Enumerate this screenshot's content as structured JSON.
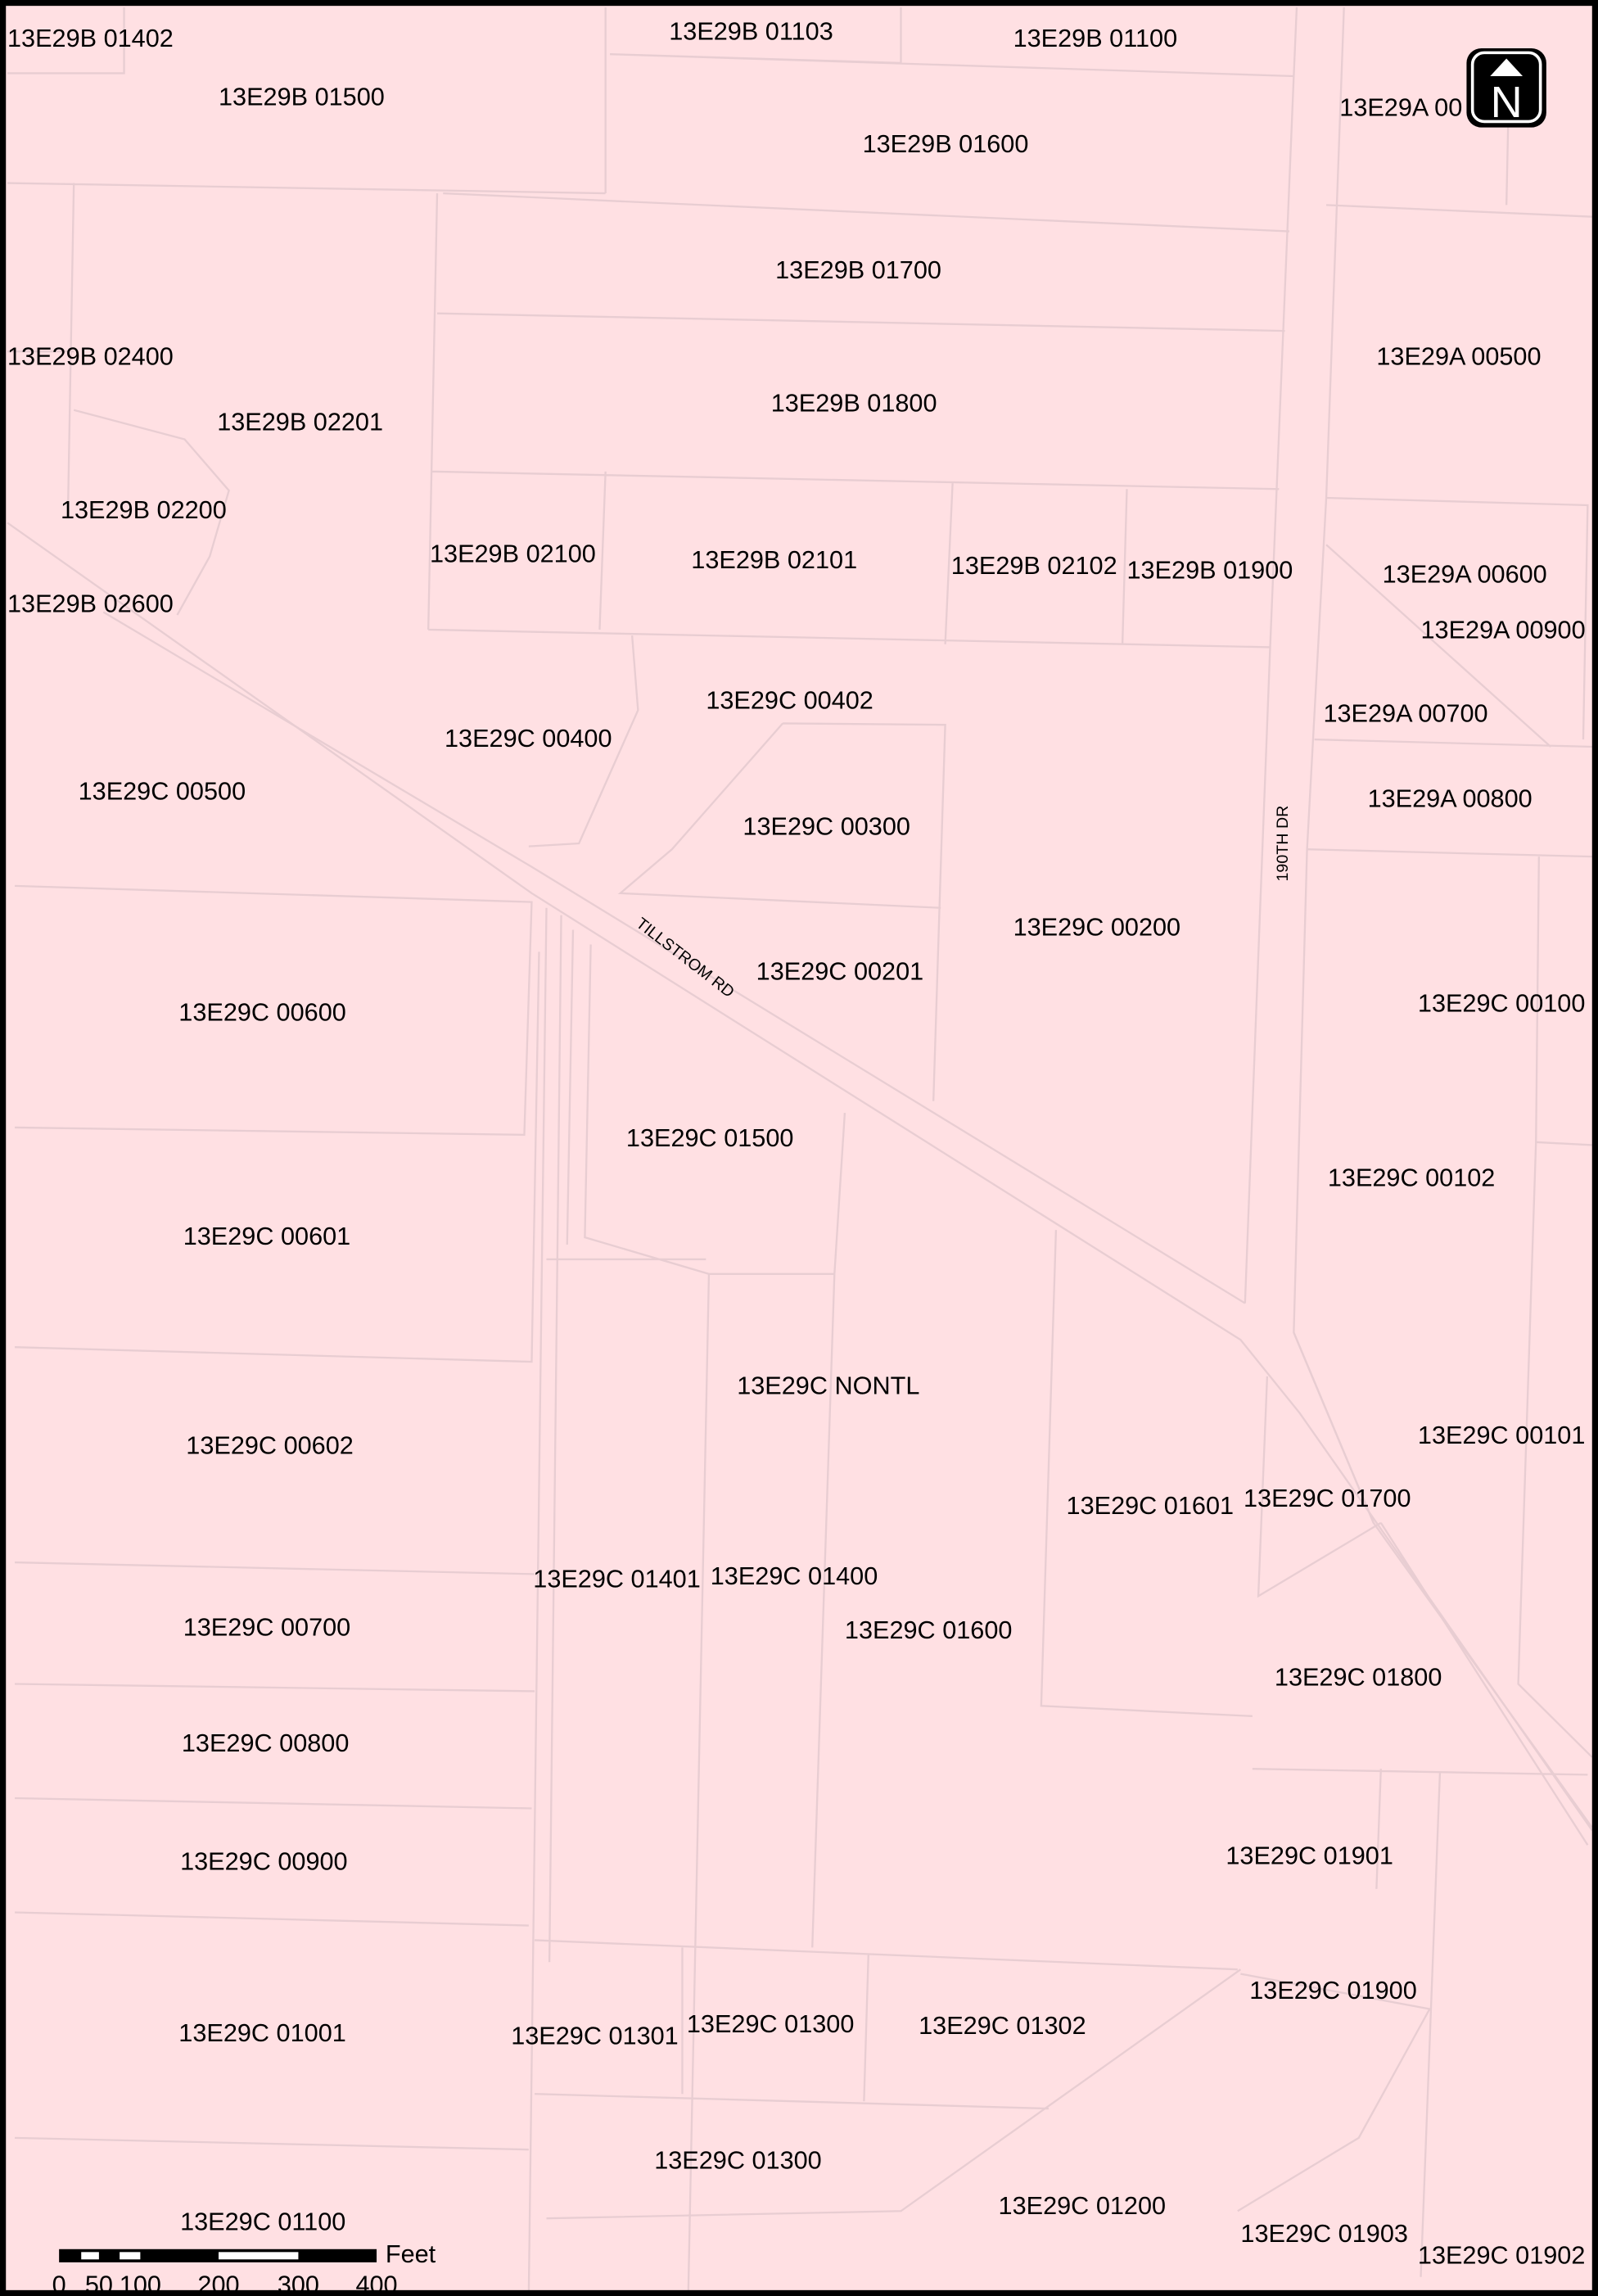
{
  "parcels": [
    "13E29B 01402",
    "13E29B 01103",
    "13E29B 01100",
    "13E29B 01500",
    "13E29A 00",
    "13E29B 01600",
    "13E29B 01700",
    "13E29B 02400",
    "13E29A 00500",
    "13E29B 01800",
    "13E29B 02201",
    "13E29B 02200",
    "13E29B 02100",
    "13E29B 02101",
    "13E29B 02102",
    "13E29B 01900",
    "13E29A 00600",
    "13E29B 02600",
    "13E29A 00900",
    "13E29C 00402",
    "13E29A 00700",
    "13E29C 00400",
    "13E29C 00500",
    "13E29A 00800",
    "13E29C 00300",
    "13E29C 00200",
    "13E29C 00201",
    "13E29C 00100",
    "13E29C 00600",
    "13E29C 01500",
    "13E29C 00102",
    "13E29C 00601",
    "13E29C NONTL",
    "13E29C 00101",
    "13E29C 00602",
    "13E29C 01700",
    "13E29C 01601",
    "13E29C 01401",
    "13E29C 01400",
    "13E29C 00700",
    "13E29C 01600",
    "13E29C 01800",
    "13E29C 00800",
    "13E29C 01901",
    "13E29C 00900",
    "13E29C 01900",
    "13E29C 01300",
    "13E29C 01302",
    "13E29C 01001",
    "13E29C 01301",
    "13E29C 01300",
    "13E29C 01200",
    "13E29C 01100",
    "13E29C 01903",
    "13E29C 01902"
  ],
  "roads": [
    "TILLSTROM RD",
    "190TH DR"
  ],
  "north_arrow": "N",
  "scale_bar": {
    "unit": "Feet",
    "labels": [
      0,
      50,
      100,
      200,
      300,
      400
    ]
  }
}
